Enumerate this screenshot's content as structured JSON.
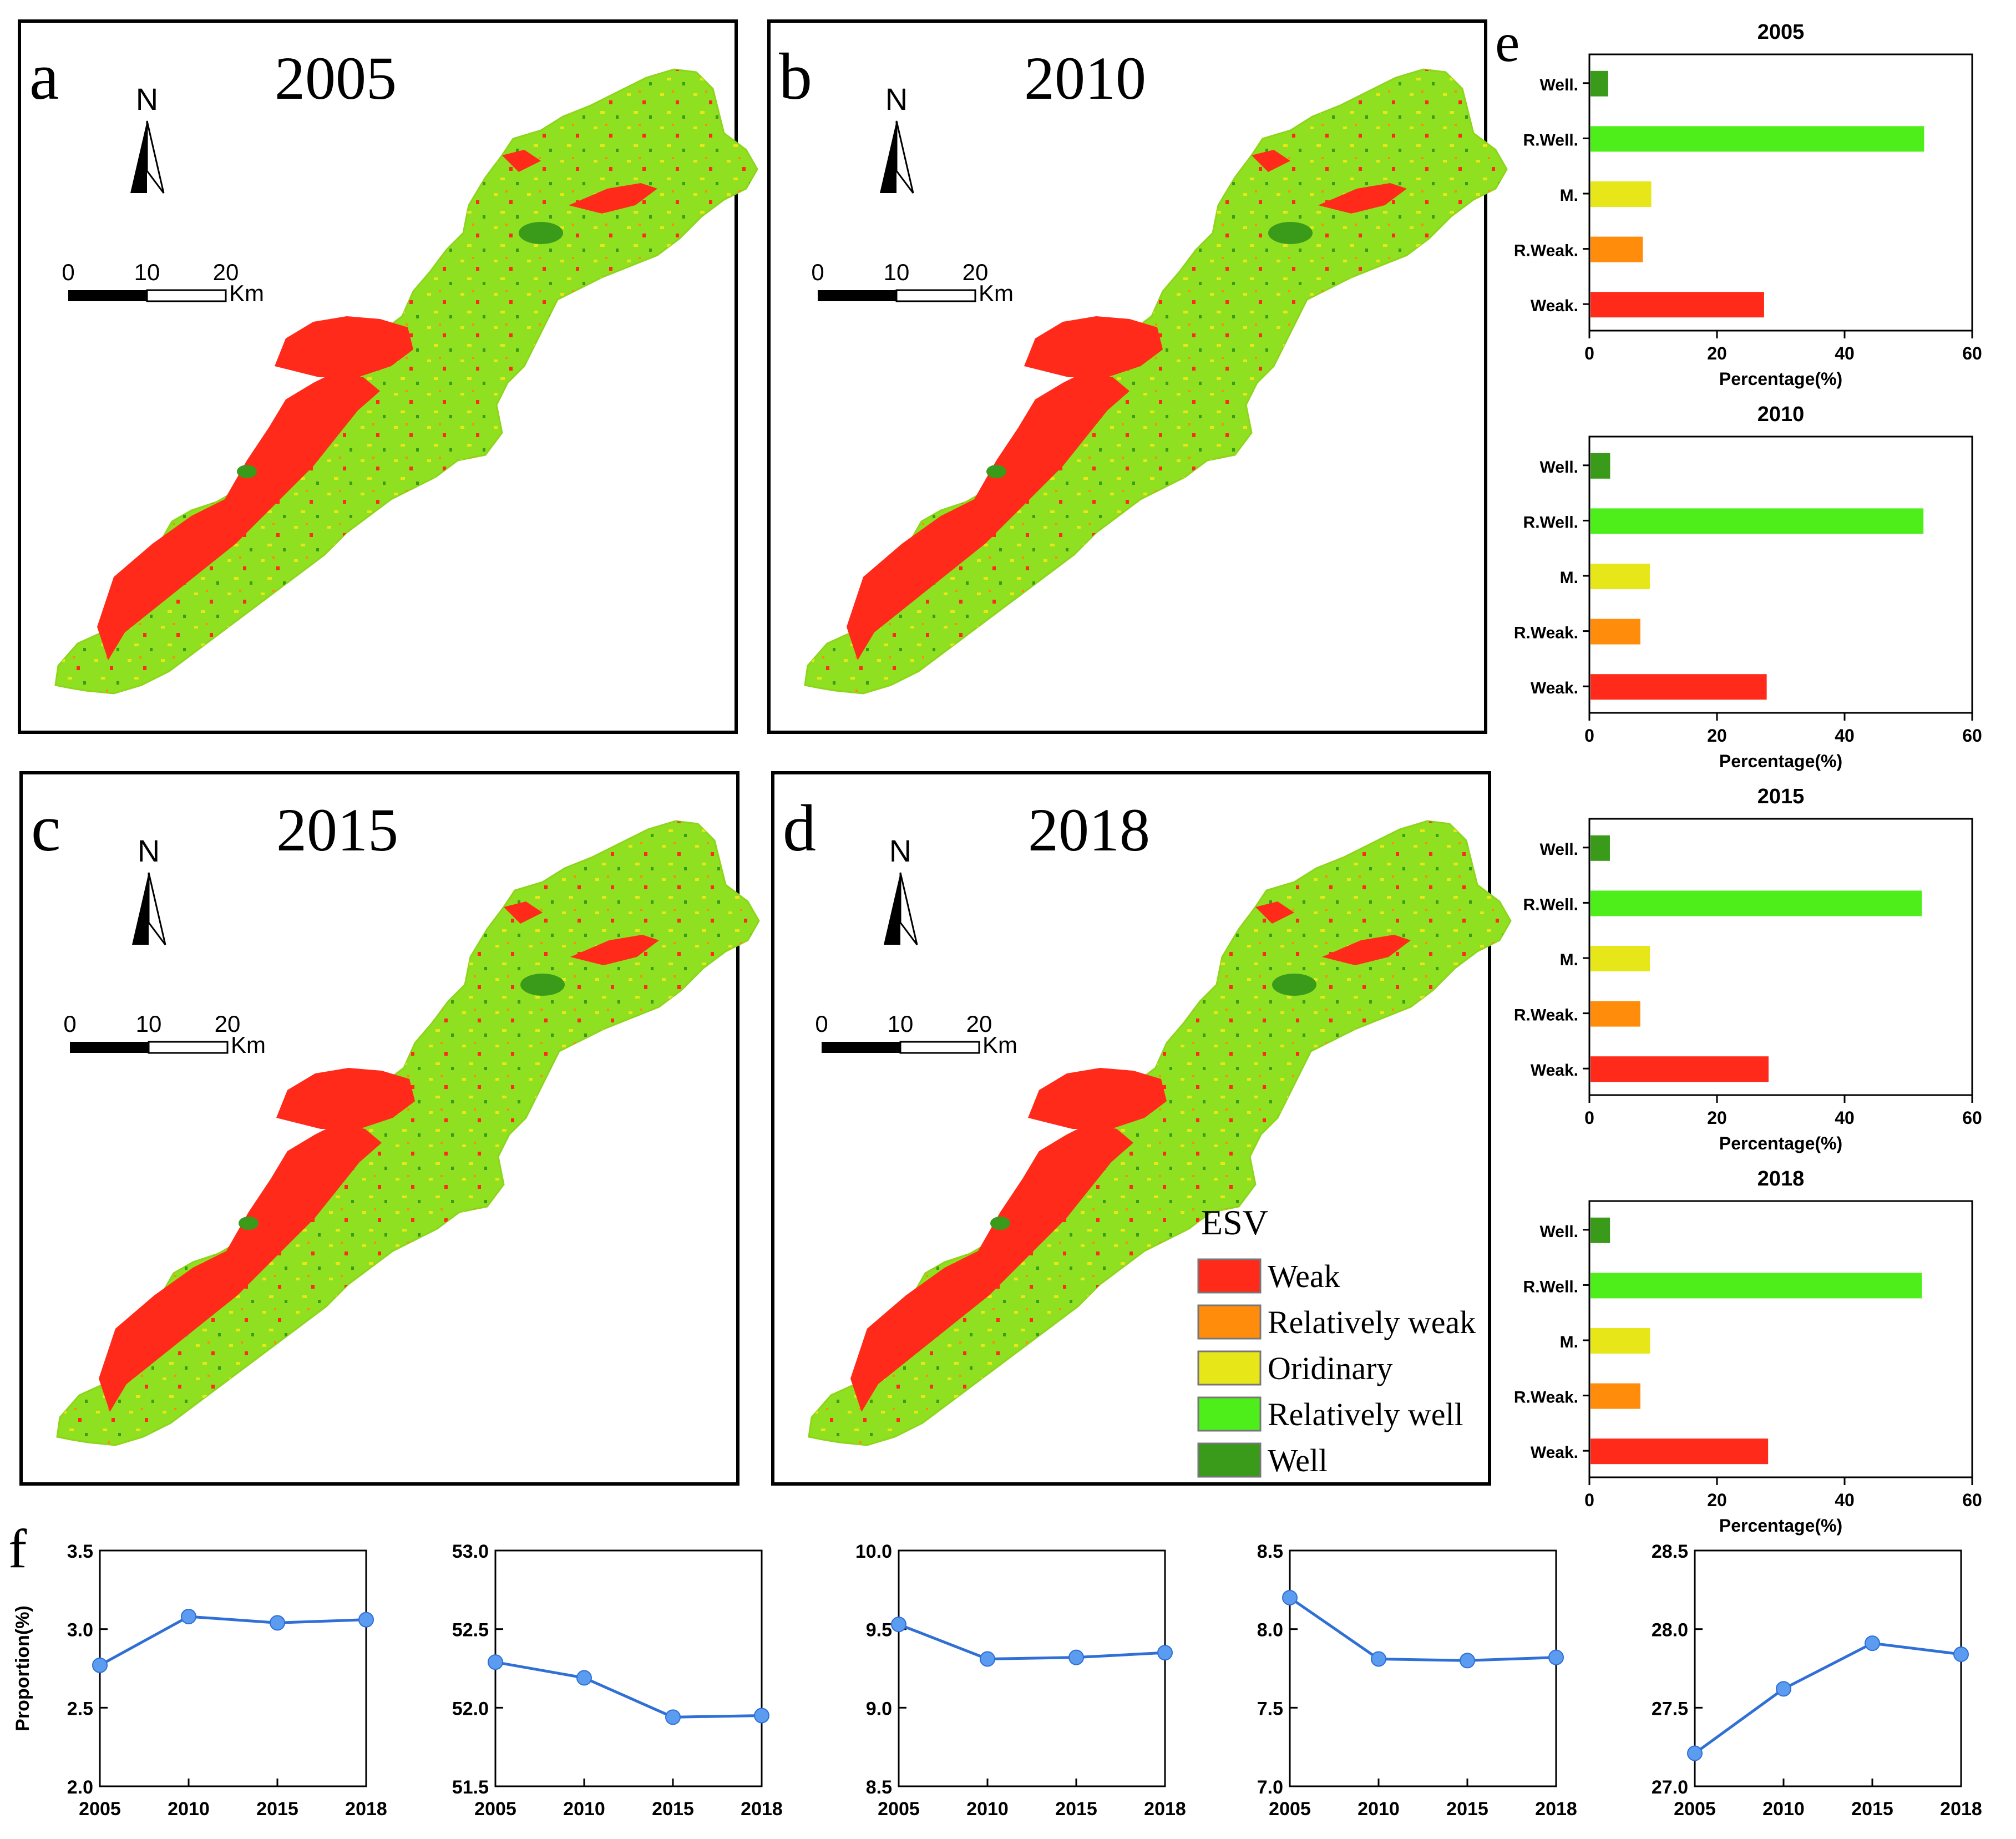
{
  "panels": {
    "a": {
      "letter": "a",
      "year": "2005"
    },
    "b": {
      "letter": "b",
      "year": "2010"
    },
    "c": {
      "letter": "c",
      "year": "2015"
    },
    "d": {
      "letter": "d",
      "year": "2018"
    }
  },
  "letters": {
    "e": "e",
    "f": "f"
  },
  "map_common": {
    "north": "N",
    "scale_ticks": [
      "0",
      "10",
      "20"
    ],
    "scale_unit": "Km"
  },
  "legend": {
    "title": "ESV",
    "items": [
      {
        "label": "Weak",
        "color": "#ff2a1a"
      },
      {
        "label": "Relatively weak",
        "color": "#ff8c0a"
      },
      {
        "label": "Oridinary",
        "color": "#e6e619"
      },
      {
        "label": "Relatively well",
        "color": "#4dee1a"
      },
      {
        "label": "Well",
        "color": "#3a9a1a"
      }
    ]
  },
  "colors": {
    "weak": "#ff2a1a",
    "relatively_weak": "#ff8c0a",
    "ordinary": "#e6e619",
    "relatively_well": "#4dee1a",
    "well": "#3a9a1a",
    "map_base": "#8ee020",
    "line": "#2f6fd6",
    "marker": "#5b9cf0"
  },
  "chart_data": [
    {
      "type": "bar",
      "orientation": "horizontal",
      "title": "2005",
      "categories": [
        "Well.",
        "R.Well.",
        "M.",
        "R.Weak.",
        "Weak."
      ],
      "values": [
        2.77,
        52.29,
        9.53,
        8.2,
        27.21
      ],
      "xlabel": "Percentage(%)",
      "xlim": [
        0,
        60
      ],
      "xticks": [
        "0",
        "20",
        "40",
        "60"
      ]
    },
    {
      "type": "bar",
      "orientation": "horizontal",
      "title": "2010",
      "categories": [
        "Well.",
        "R.Well.",
        "M.",
        "R.Weak.",
        "Weak."
      ],
      "values": [
        3.08,
        52.19,
        9.31,
        7.81,
        27.62
      ],
      "xlabel": "Percentage(%)",
      "xlim": [
        0,
        60
      ],
      "xticks": [
        "0",
        "20",
        "40",
        "60"
      ]
    },
    {
      "type": "bar",
      "orientation": "horizontal",
      "title": "2015",
      "categories": [
        "Well.",
        "R.Well.",
        "M.",
        "R.Weak.",
        "Weak."
      ],
      "values": [
        3.04,
        51.94,
        9.32,
        7.8,
        27.91
      ],
      "xlabel": "Percentage(%)",
      "xlim": [
        0,
        60
      ],
      "xticks": [
        "0",
        "20",
        "40",
        "60"
      ]
    },
    {
      "type": "bar",
      "orientation": "horizontal",
      "title": "2018",
      "categories": [
        "Well.",
        "R.Well.",
        "M.",
        "R.Weak.",
        "Weak."
      ],
      "values": [
        3.06,
        51.95,
        9.35,
        7.82,
        27.84
      ],
      "xlabel": "Percentage(%)",
      "xlim": [
        0,
        60
      ],
      "xticks": [
        "0",
        "20",
        "40",
        "60"
      ]
    },
    {
      "type": "line",
      "x": [
        "2005",
        "2010",
        "2015",
        "2018"
      ],
      "y": [
        2.77,
        3.08,
        3.04,
        3.06
      ],
      "ylabel": "Proportion(%)",
      "ylim": [
        2.0,
        3.5
      ],
      "yticks": [
        "2.0",
        "2.5",
        "3.0",
        "3.5"
      ]
    },
    {
      "type": "line",
      "x": [
        "2005",
        "2010",
        "2015",
        "2018"
      ],
      "y": [
        52.29,
        52.19,
        51.94,
        51.95
      ],
      "ylim": [
        51.5,
        53.0
      ],
      "yticks": [
        "51.5",
        "52.0",
        "52.5",
        "53.0"
      ]
    },
    {
      "type": "line",
      "x": [
        "2005",
        "2010",
        "2015",
        "2018"
      ],
      "y": [
        9.53,
        9.31,
        9.32,
        9.35
      ],
      "ylim": [
        8.5,
        10.0
      ],
      "yticks": [
        "8.5",
        "9.0",
        "9.5",
        "10.0"
      ]
    },
    {
      "type": "line",
      "x": [
        "2005",
        "2010",
        "2015",
        "2018"
      ],
      "y": [
        8.2,
        7.81,
        7.8,
        7.82
      ],
      "ylim": [
        7.0,
        8.5
      ],
      "yticks": [
        "7.0",
        "7.5",
        "8.0",
        "8.5"
      ]
    },
    {
      "type": "line",
      "x": [
        "2005",
        "2010",
        "2015",
        "2018"
      ],
      "y": [
        27.21,
        27.62,
        27.91,
        27.84
      ],
      "ylim": [
        27.0,
        28.5
      ],
      "yticks": [
        "27.0",
        "27.5",
        "28.0",
        "28.5"
      ]
    }
  ]
}
